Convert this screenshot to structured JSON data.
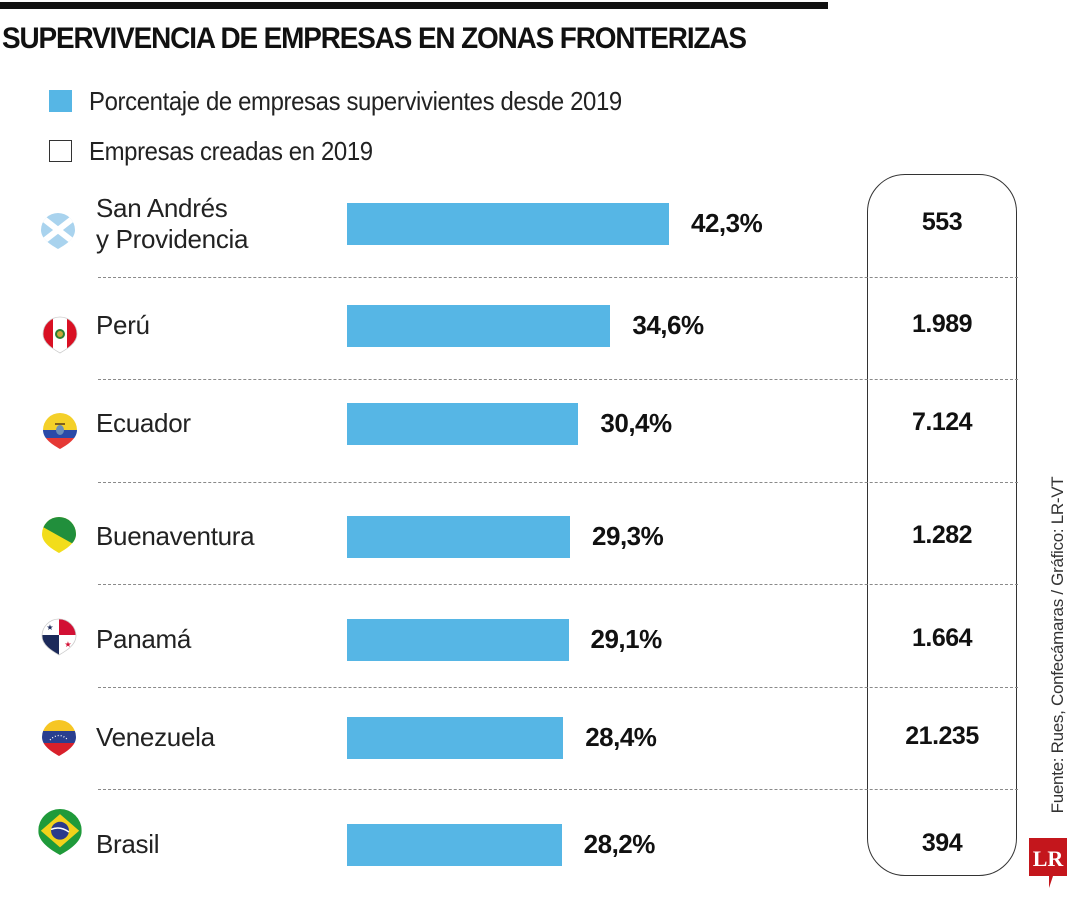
{
  "header": {
    "title": "SUPERVIVENCIA DE EMPRESAS EN ZONAS FRONTERIZAS"
  },
  "legend": [
    {
      "label": "Porcentaje de empresas supervivientes desde 2019",
      "swatch": "filled",
      "color": "#56b6e5"
    },
    {
      "label": "Empresas creadas en 2019",
      "swatch": "outline",
      "color": "#ffffff"
    }
  ],
  "source": "Fuente: Rues, Confecámaras / Gráfico: LR-VT",
  "logo": {
    "text": "LR",
    "color": "#c4161c"
  },
  "colors": {
    "bar": "#56b6e5",
    "text": "#111111",
    "divider": "#8a8a8a"
  },
  "chart_data": {
    "type": "bar",
    "orientation": "horizontal",
    "title": "SUPERVIVENCIA DE EMPRESAS EN ZONAS FRONTERIZAS",
    "xlabel": "",
    "ylabel": "",
    "xlim": [
      0,
      45
    ],
    "grid": false,
    "legend_position": "top-left",
    "categories": [
      "San Andrés\ny Providencia",
      "Perú",
      "Ecuador",
      "Buenaventura",
      "Panamá",
      "Venezuela",
      "Brasil"
    ],
    "icons": [
      "san-andres-flag-pin-icon",
      "peru-flag-pin-icon",
      "ecuador-flag-pin-icon",
      "buenaventura-flag-pin-icon",
      "panama-flag-pin-icon",
      "venezuela-flag-pin-icon",
      "brasil-flag-pin-icon"
    ],
    "series": [
      {
        "name": "Porcentaje de empresas supervivientes desde 2019",
        "values": [
          42.3,
          34.6,
          30.4,
          29.3,
          29.1,
          28.4,
          28.2
        ],
        "labels": [
          "42,3%",
          "34,6%",
          "30,4%",
          "29,3%",
          "29,1%",
          "28,4%",
          "28,2%"
        ]
      },
      {
        "name": "Empresas creadas en 2019",
        "values": [
          553,
          1989,
          7124,
          1282,
          1664,
          21235,
          394
        ],
        "labels": [
          "553",
          "1.989",
          "7.124",
          "1.282",
          "1.664",
          "21.235",
          "394"
        ]
      }
    ]
  }
}
